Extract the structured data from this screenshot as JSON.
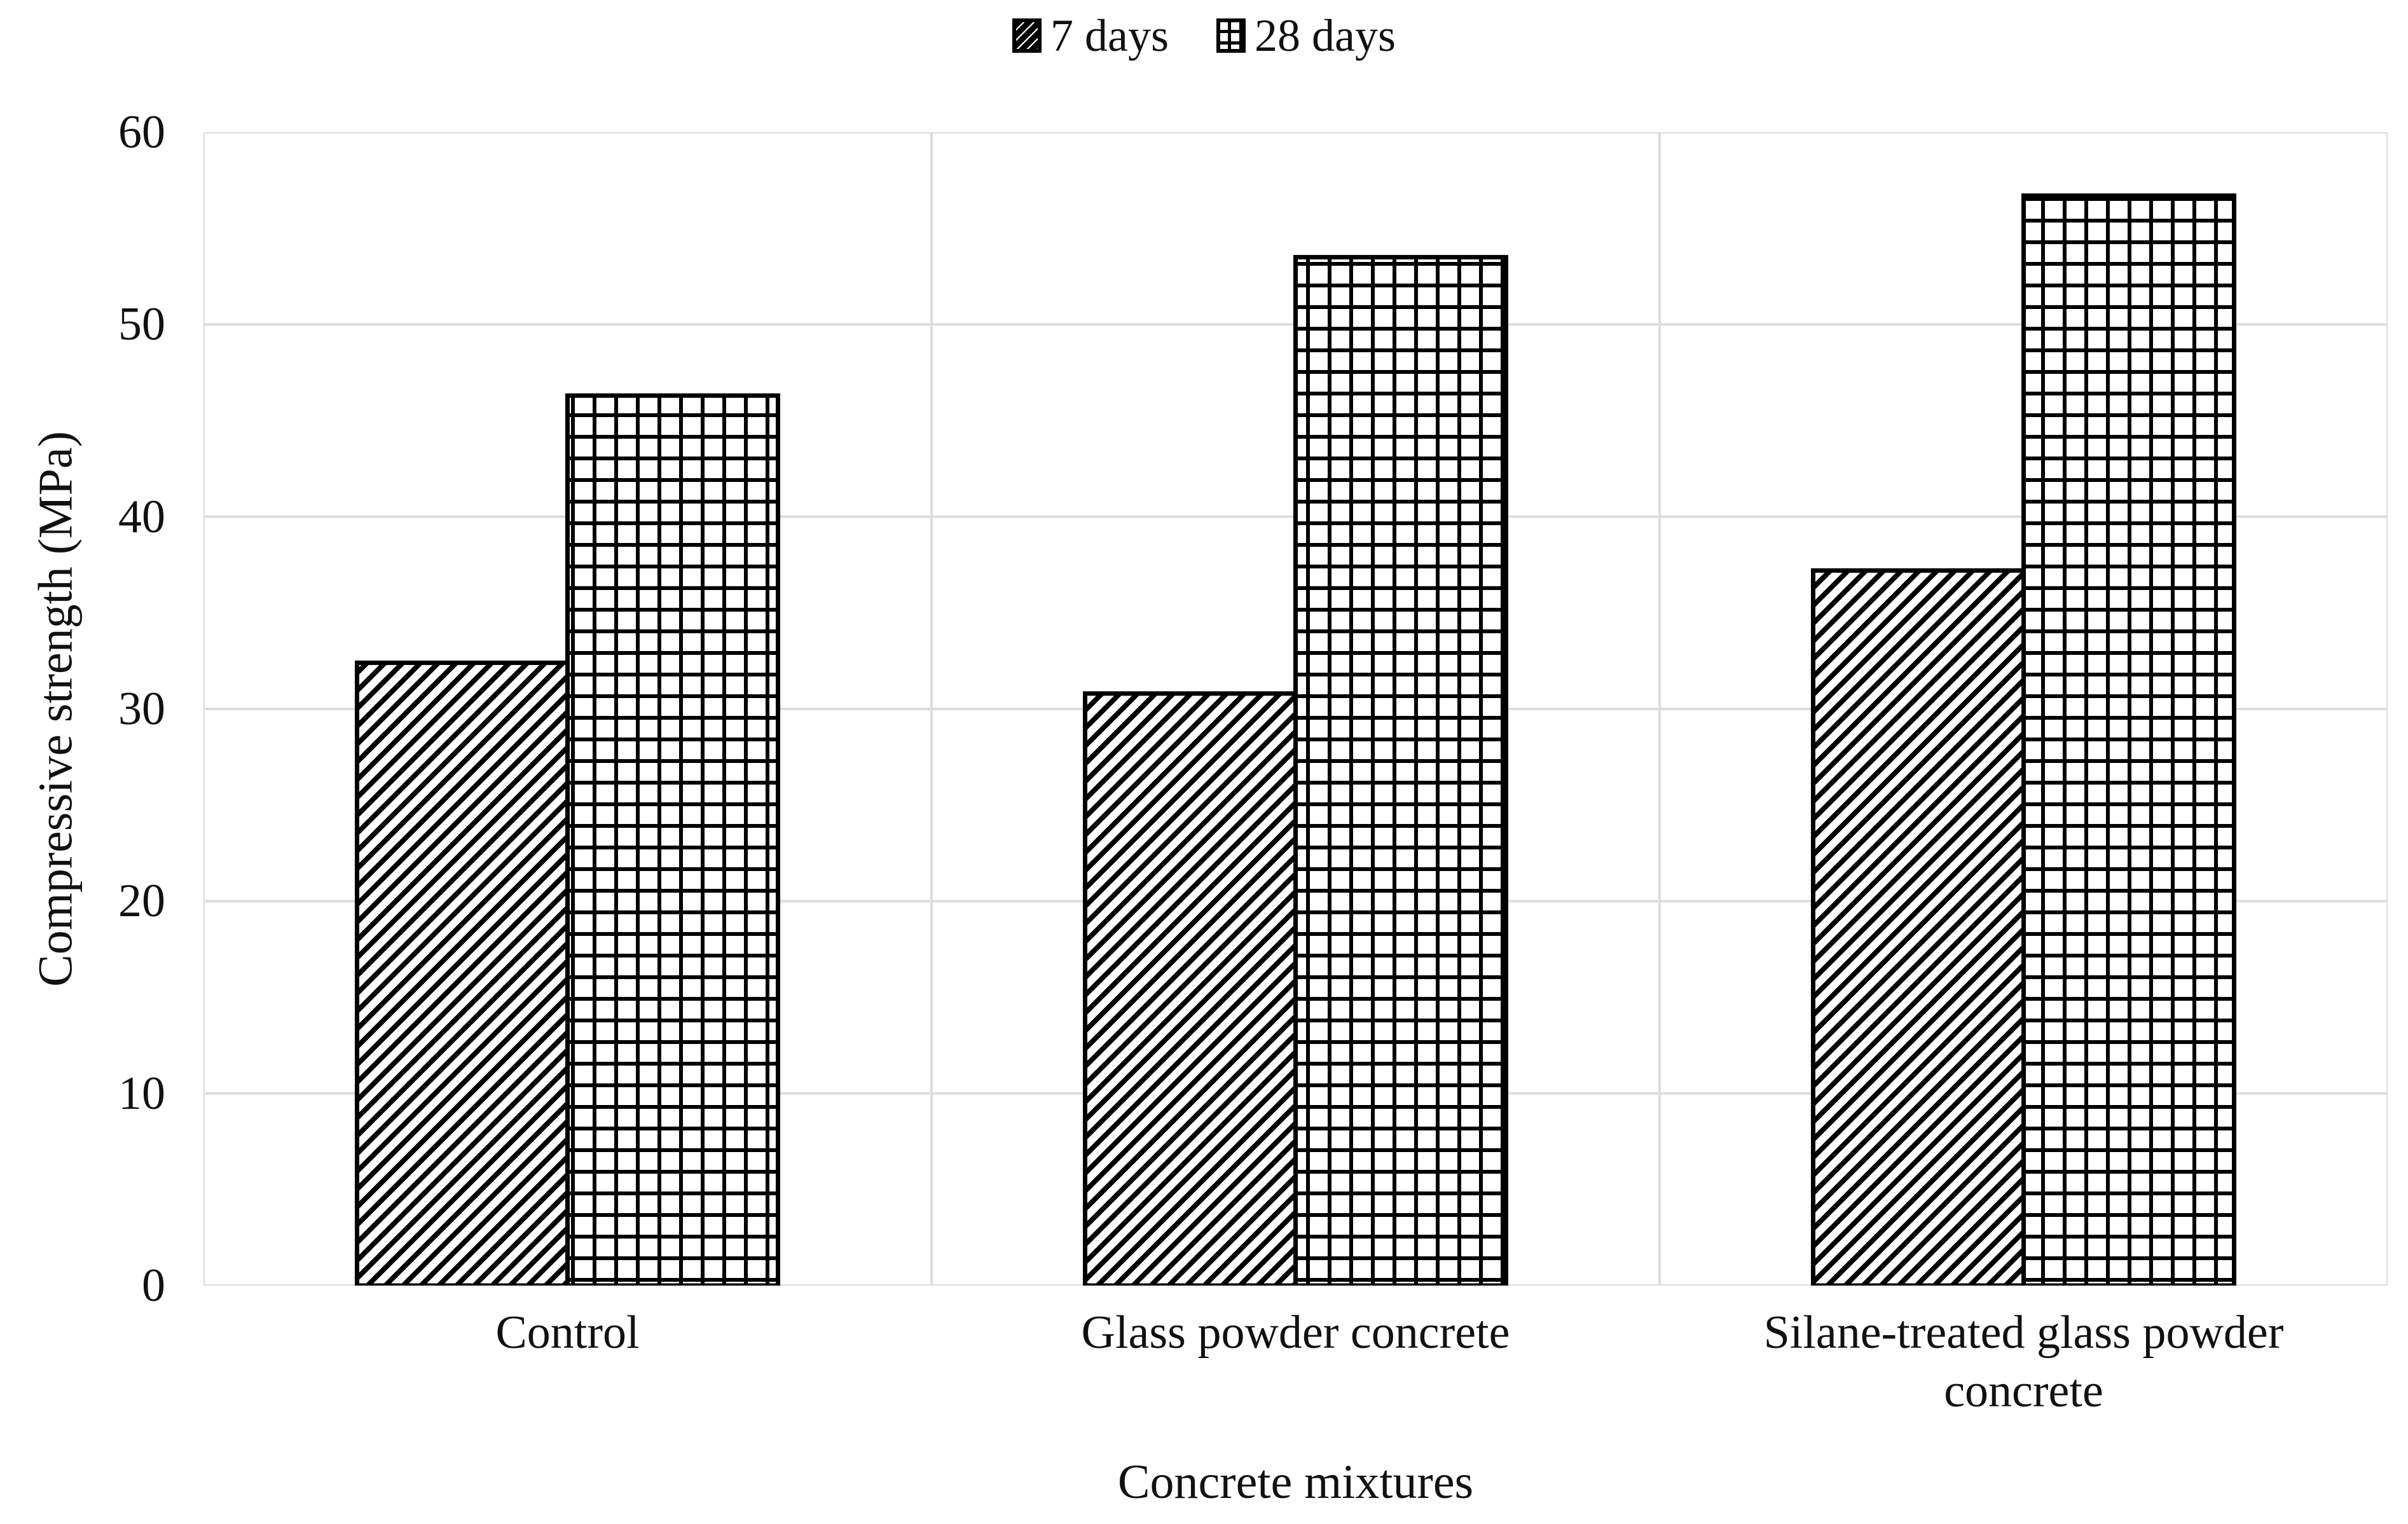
{
  "page": {
    "background": "#ffffff"
  },
  "chart_data": {
    "type": "bar",
    "title": "",
    "categories": [
      "Control",
      "Glass powder concrete",
      "Silane-treated glass powder concrete"
    ],
    "series": [
      {
        "name": "7 days",
        "pattern": "diagonal-hatch",
        "values": [
          32.4,
          30.8,
          37.2
        ]
      },
      {
        "name": "28 days",
        "pattern": "grid-hatch",
        "values": [
          46.3,
          53.5,
          56.7
        ]
      }
    ],
    "xlabel": "Concrete mixtures",
    "ylabel": "Compressive strength (MPa)",
    "ylim": [
      0,
      60
    ],
    "yticks": [
      0,
      10,
      20,
      30,
      40,
      50,
      60
    ],
    "grid": true,
    "legend_position": "top",
    "colors": {
      "bar_fill": "#ffffff",
      "bar_stroke": "#000000",
      "gridline": "#dcdcdc",
      "text": "#111111",
      "background": "#ffffff"
    }
  }
}
